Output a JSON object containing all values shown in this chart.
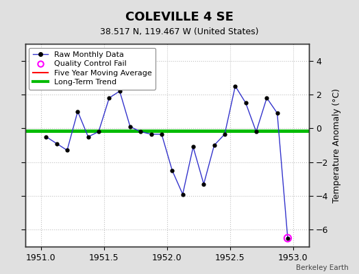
{
  "title": "COLEVILLE 4 SE",
  "subtitle": "38.517 N, 119.467 W (United States)",
  "ylabel": "Temperature Anomaly (°C)",
  "watermark": "Berkeley Earth",
  "xlim": [
    1950.875,
    1953.125
  ],
  "ylim": [
    -7.0,
    5.0
  ],
  "xticks": [
    1951,
    1951.5,
    1952,
    1952.5,
    1953
  ],
  "yticks": [
    -6,
    -4,
    -2,
    0,
    2,
    4
  ],
  "bg_color": "#e0e0e0",
  "plot_bg_color": "#ffffff",
  "grid_color": "#c0c0c0",
  "raw_x": [
    1951.042,
    1951.125,
    1951.208,
    1951.292,
    1951.375,
    1951.458,
    1951.542,
    1951.625,
    1951.708,
    1951.792,
    1951.875,
    1951.958,
    1952.042,
    1952.125,
    1952.208,
    1952.292,
    1952.375,
    1952.458,
    1952.542,
    1952.625,
    1952.708,
    1952.792,
    1952.875,
    1952.958
  ],
  "raw_y": [
    -0.5,
    -0.9,
    -1.3,
    1.0,
    -0.5,
    -0.2,
    1.8,
    2.2,
    0.1,
    -0.2,
    -0.35,
    -0.35,
    -2.5,
    -3.9,
    -1.1,
    -3.3,
    -1.0,
    -0.35,
    2.5,
    1.5,
    -0.2,
    1.8,
    0.9,
    -6.5
  ],
  "qc_fail_x": [
    1952.958
  ],
  "qc_fail_y": [
    -6.5
  ],
  "trend_x": [
    1950.875,
    1953.125
  ],
  "trend_y": [
    -0.15,
    -0.15
  ],
  "raw_line_color": "#3333cc",
  "raw_marker_color": "#000000",
  "qc_fail_color": "#ff00ff",
  "moving_avg_color": "#ff0000",
  "trend_color": "#00bb00",
  "legend_labels": [
    "Raw Monthly Data",
    "Quality Control Fail",
    "Five Year Moving Average",
    "Long-Term Trend"
  ],
  "title_fontsize": 13,
  "subtitle_fontsize": 9,
  "legend_fontsize": 8,
  "tick_labelsize": 9,
  "ylabel_fontsize": 9
}
